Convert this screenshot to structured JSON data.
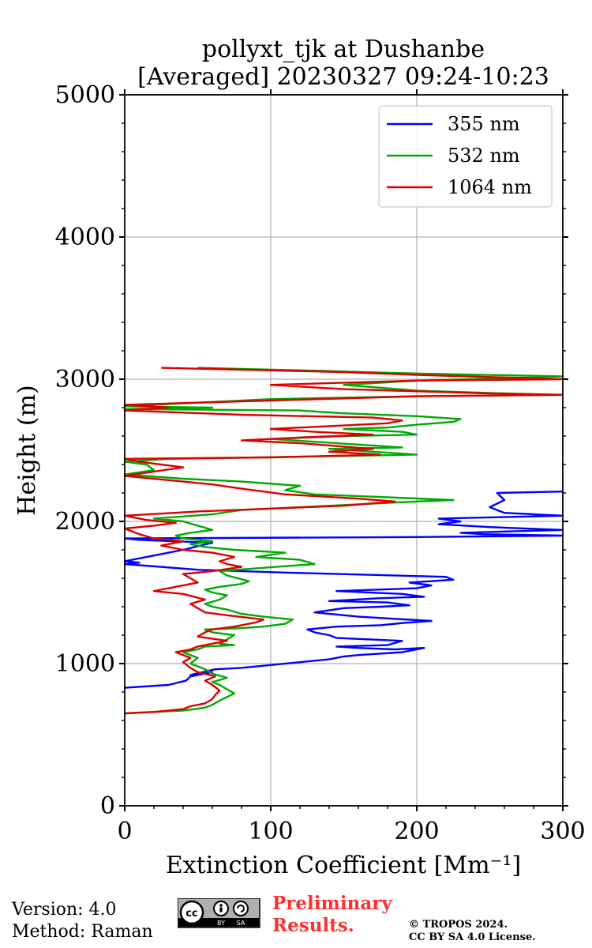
{
  "chart_data": {
    "type": "line",
    "title_line1": "pollyxt_tjk at Dushanbe",
    "title_line2": "[Averaged] 20230327 09:24-10:23",
    "xlabel": "Extinction Coefficient [Mm⁻¹]",
    "ylabel": "Height (m)",
    "xlim": [
      0,
      300
    ],
    "ylim": [
      0,
      5000
    ],
    "xticks": [
      0,
      100,
      200,
      300
    ],
    "xtick_labels": [
      "0",
      "100",
      "200",
      "300"
    ],
    "yticks": [
      0,
      1000,
      2000,
      3000,
      4000,
      5000
    ],
    "ytick_labels": [
      "0",
      "1000",
      "2000",
      "3000",
      "4000",
      "5000"
    ],
    "grid": true,
    "legend_position": "top-right",
    "series": [
      {
        "name": "355 nm",
        "color": "#0000ff",
        "points": [
          [
            0,
            830
          ],
          [
            30,
            850
          ],
          [
            42,
            880
          ],
          [
            45,
            910
          ],
          [
            60,
            940
          ],
          [
            45,
            920
          ],
          [
            62,
            960
          ],
          [
            80,
            970
          ],
          [
            100,
            990
          ],
          [
            120,
            1010
          ],
          [
            140,
            1030
          ],
          [
            150,
            1050
          ],
          [
            160,
            1060
          ],
          [
            190,
            1080
          ],
          [
            205,
            1110
          ],
          [
            185,
            1100
          ],
          [
            160,
            1110
          ],
          [
            145,
            1120
          ],
          [
            180,
            1130
          ],
          [
            190,
            1160
          ],
          [
            145,
            1180
          ],
          [
            140,
            1200
          ],
          [
            130,
            1220
          ],
          [
            125,
            1240
          ],
          [
            145,
            1260
          ],
          [
            175,
            1270
          ],
          [
            190,
            1285
          ],
          [
            210,
            1300
          ],
          [
            160,
            1330
          ],
          [
            130,
            1360
          ],
          [
            150,
            1390
          ],
          [
            175,
            1400
          ],
          [
            195,
            1410
          ],
          [
            180,
            1430
          ],
          [
            140,
            1440
          ],
          [
            175,
            1460
          ],
          [
            205,
            1470
          ],
          [
            190,
            1490
          ],
          [
            145,
            1510
          ],
          [
            200,
            1530
          ],
          [
            210,
            1550
          ],
          [
            195,
            1570
          ],
          [
            225,
            1590
          ],
          [
            220,
            1610
          ],
          [
            110,
            1640
          ],
          [
            50,
            1660
          ],
          [
            0,
            1700
          ],
          [
            10,
            1710
          ],
          [
            0,
            1720
          ],
          [
            20,
            1760
          ],
          [
            40,
            1800
          ],
          [
            60,
            1850
          ],
          [
            10,
            1870
          ],
          [
            0,
            1880
          ],
          [
            200,
            1890
          ],
          [
            300,
            1900
          ],
          [
            245,
            1910
          ],
          [
            230,
            1920
          ],
          [
            300,
            1940
          ],
          [
            250,
            1960
          ],
          [
            215,
            1980
          ],
          [
            230,
            2000
          ],
          [
            215,
            2020
          ],
          [
            300,
            2040
          ],
          [
            260,
            2060
          ],
          [
            250,
            2100
          ],
          [
            260,
            2150
          ],
          [
            255,
            2200
          ],
          [
            300,
            2210
          ]
        ]
      },
      {
        "name": "532 nm",
        "color": "#00aa00",
        "points": [
          [
            0,
            650
          ],
          [
            20,
            660
          ],
          [
            40,
            670
          ],
          [
            55,
            690
          ],
          [
            60,
            710
          ],
          [
            65,
            740
          ],
          [
            75,
            790
          ],
          [
            70,
            820
          ],
          [
            65,
            850
          ],
          [
            60,
            870
          ],
          [
            70,
            900
          ],
          [
            60,
            930
          ],
          [
            55,
            960
          ],
          [
            45,
            1000
          ],
          [
            50,
            1040
          ],
          [
            40,
            1080
          ],
          [
            50,
            1100
          ],
          [
            55,
            1120
          ],
          [
            75,
            1130
          ],
          [
            65,
            1140
          ],
          [
            70,
            1170
          ],
          [
            75,
            1200
          ],
          [
            60,
            1220
          ],
          [
            55,
            1240
          ],
          [
            80,
            1250
          ],
          [
            95,
            1260
          ],
          [
            110,
            1280
          ],
          [
            115,
            1310
          ],
          [
            95,
            1330
          ],
          [
            80,
            1350
          ],
          [
            70,
            1380
          ],
          [
            60,
            1400
          ],
          [
            55,
            1420
          ],
          [
            65,
            1450
          ],
          [
            70,
            1480
          ],
          [
            60,
            1500
          ],
          [
            55,
            1520
          ],
          [
            65,
            1540
          ],
          [
            80,
            1560
          ],
          [
            85,
            1580
          ],
          [
            70,
            1620
          ],
          [
            65,
            1650
          ],
          [
            90,
            1670
          ],
          [
            130,
            1700
          ],
          [
            120,
            1730
          ],
          [
            90,
            1750
          ],
          [
            110,
            1780
          ],
          [
            75,
            1800
          ],
          [
            55,
            1820
          ],
          [
            45,
            1840
          ],
          [
            60,
            1860
          ],
          [
            40,
            1880
          ],
          [
            35,
            1900
          ],
          [
            45,
            1920
          ],
          [
            60,
            1940
          ],
          [
            50,
            1970
          ],
          [
            40,
            2000
          ],
          [
            20,
            2020
          ],
          [
            60,
            2050
          ],
          [
            80,
            2080
          ],
          [
            120,
            2100
          ],
          [
            160,
            2120
          ],
          [
            200,
            2140
          ],
          [
            225,
            2150
          ],
          [
            180,
            2170
          ],
          [
            130,
            2190
          ],
          [
            110,
            2220
          ],
          [
            120,
            2250
          ],
          [
            80,
            2280
          ],
          [
            40,
            2300
          ],
          [
            0,
            2330
          ],
          [
            20,
            2360
          ],
          [
            15,
            2400
          ],
          [
            0,
            2420
          ],
          [
            30,
            2440
          ],
          [
            150,
            2460
          ],
          [
            200,
            2470
          ],
          [
            170,
            2490
          ],
          [
            140,
            2510
          ],
          [
            190,
            2520
          ],
          [
            160,
            2540
          ],
          [
            130,
            2560
          ],
          [
            100,
            2580
          ],
          [
            150,
            2600
          ],
          [
            200,
            2610
          ],
          [
            190,
            2630
          ],
          [
            150,
            2650
          ],
          [
            180,
            2660
          ],
          [
            200,
            2680
          ],
          [
            225,
            2700
          ],
          [
            230,
            2720
          ],
          [
            200,
            2740
          ],
          [
            150,
            2760
          ],
          [
            120,
            2780
          ],
          [
            0,
            2790
          ],
          [
            60,
            2800
          ],
          [
            0,
            2810
          ],
          [
            100,
            2860
          ],
          [
            200,
            2880
          ],
          [
            300,
            2890
          ],
          [
            260,
            2900
          ],
          [
            200,
            2920
          ],
          [
            150,
            2960
          ],
          [
            200,
            2990
          ],
          [
            300,
            3020
          ],
          [
            200,
            3040
          ],
          [
            130,
            3060
          ],
          [
            50,
            3080
          ]
        ]
      },
      {
        "name": "1064 nm",
        "color": "#dd0000",
        "points": [
          [
            0,
            650
          ],
          [
            20,
            660
          ],
          [
            40,
            680
          ],
          [
            45,
            700
          ],
          [
            55,
            720
          ],
          [
            60,
            750
          ],
          [
            62,
            780
          ],
          [
            65,
            810
          ],
          [
            60,
            850
          ],
          [
            55,
            880
          ],
          [
            62,
            910
          ],
          [
            50,
            940
          ],
          [
            45,
            970
          ],
          [
            40,
            1010
          ],
          [
            45,
            1040
          ],
          [
            35,
            1080
          ],
          [
            45,
            1100
          ],
          [
            50,
            1120
          ],
          [
            60,
            1140
          ],
          [
            70,
            1160
          ],
          [
            50,
            1190
          ],
          [
            55,
            1220
          ],
          [
            60,
            1240
          ],
          [
            75,
            1260
          ],
          [
            90,
            1290
          ],
          [
            95,
            1310
          ],
          [
            70,
            1340
          ],
          [
            55,
            1360
          ],
          [
            50,
            1390
          ],
          [
            45,
            1420
          ],
          [
            55,
            1450
          ],
          [
            40,
            1490
          ],
          [
            20,
            1510
          ],
          [
            35,
            1540
          ],
          [
            50,
            1570
          ],
          [
            45,
            1600
          ],
          [
            40,
            1630
          ],
          [
            60,
            1650
          ],
          [
            80,
            1680
          ],
          [
            70,
            1700
          ],
          [
            65,
            1720
          ],
          [
            75,
            1750
          ],
          [
            60,
            1780
          ],
          [
            40,
            1800
          ],
          [
            25,
            1830
          ],
          [
            40,
            1860
          ],
          [
            20,
            1880
          ],
          [
            10,
            1910
          ],
          [
            5,
            1930
          ],
          [
            0,
            1950
          ],
          [
            20,
            1970
          ],
          [
            35,
            1990
          ],
          [
            15,
            2010
          ],
          [
            0,
            2040
          ],
          [
            50,
            2070
          ],
          [
            100,
            2090
          ],
          [
            150,
            2110
          ],
          [
            185,
            2140
          ],
          [
            160,
            2160
          ],
          [
            110,
            2190
          ],
          [
            80,
            2230
          ],
          [
            60,
            2260
          ],
          [
            30,
            2290
          ],
          [
            0,
            2320
          ],
          [
            20,
            2350
          ],
          [
            40,
            2380
          ],
          [
            10,
            2420
          ],
          [
            0,
            2440
          ],
          [
            100,
            2450
          ],
          [
            175,
            2470
          ],
          [
            140,
            2490
          ],
          [
            170,
            2510
          ],
          [
            145,
            2530
          ],
          [
            120,
            2550
          ],
          [
            80,
            2570
          ],
          [
            120,
            2590
          ],
          [
            170,
            2610
          ],
          [
            130,
            2630
          ],
          [
            100,
            2650
          ],
          [
            140,
            2670
          ],
          [
            180,
            2690
          ],
          [
            190,
            2710
          ],
          [
            170,
            2730
          ],
          [
            80,
            2750
          ],
          [
            0,
            2780
          ],
          [
            30,
            2800
          ],
          [
            0,
            2820
          ],
          [
            100,
            2850
          ],
          [
            200,
            2880
          ],
          [
            300,
            2890
          ],
          [
            250,
            2900
          ],
          [
            150,
            2930
          ],
          [
            100,
            2960
          ],
          [
            200,
            2990
          ],
          [
            300,
            3000
          ],
          [
            200,
            3030
          ],
          [
            150,
            3050
          ],
          [
            25,
            3080
          ]
        ]
      }
    ]
  },
  "footer": {
    "version_line1": "Version: 4.0",
    "version_line2": "Method: Raman",
    "preliminary_line1": "Preliminary",
    "preliminary_line2": "Results.",
    "copyright_line1": "© TROPOS 2024.",
    "copyright_line2": "CC BY SA 4.0 License.",
    "badge_text1": "BY",
    "badge_text2": "SA",
    "badge_cc": "cc"
  }
}
